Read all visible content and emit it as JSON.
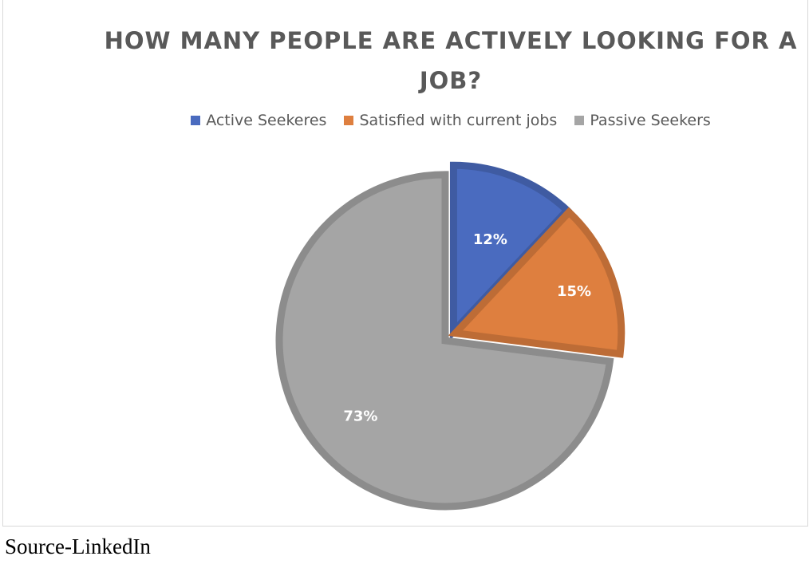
{
  "chart_data": {
    "type": "pie",
    "title": "HOW MANY PEOPLE ARE ACTIVELY LOOKING FOR A JOB?",
    "categories": [
      "Active Seekeres",
      "Satisfied with current jobs",
      "Passive Seekers"
    ],
    "values": [
      12,
      15,
      73
    ],
    "data_labels": [
      "12%",
      "15%",
      "73%"
    ],
    "colors": [
      "#4a6bbf",
      "#de7f3f",
      "#a5a5a5"
    ],
    "legend_position": "top"
  },
  "source": "Source-LinkedIn"
}
